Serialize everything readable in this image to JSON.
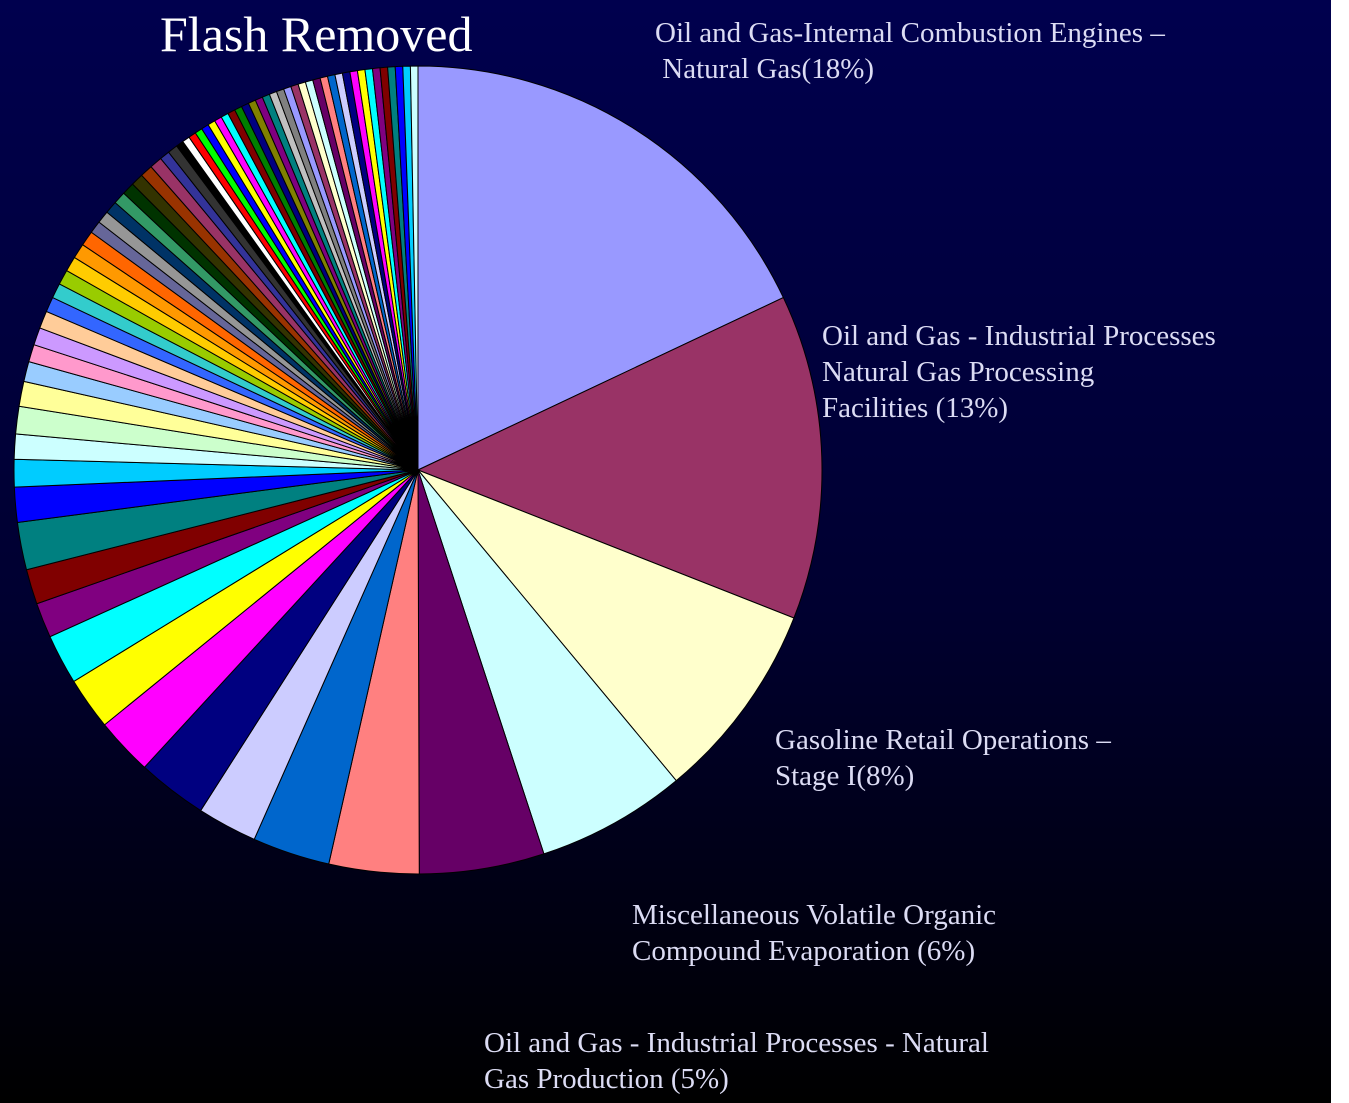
{
  "chart_data": {
    "type": "pie",
    "title": "Flash Removed",
    "categories": [
      "Oil and Gas-Internal Combustion Engines –\n Natural Gas(18%)",
      "Oil and Gas - Industrial Processes\nNatural Gas Processing\nFacilities (13%)",
      "Gasoline Retail Operations –\nStage I(8%)",
      "Miscellaneous Volatile Organic\nCompound Evaporation (6%)",
      "Oil and Gas - Industrial Processes - Natural\nGas Production (5%)",
      null,
      null,
      null,
      null,
      null,
      null,
      null,
      null,
      null,
      null,
      null,
      null,
      null,
      null,
      null,
      null,
      null,
      null,
      null,
      null,
      null,
      null,
      null,
      null,
      null,
      null,
      null,
      null,
      null,
      null,
      null,
      null,
      null,
      null,
      null,
      null,
      null,
      null,
      null,
      null,
      null,
      null,
      null,
      null,
      null,
      null,
      null,
      null,
      null,
      null,
      null,
      null,
      null,
      null,
      null,
      null,
      null,
      null,
      null,
      null,
      null,
      null,
      null,
      null,
      null,
      null,
      null,
      null,
      null
    ],
    "values": [
      18,
      13,
      8,
      6,
      5,
      3.6,
      3.1,
      2.4,
      2.8,
      2.3,
      2.1,
      2.0,
      1.4,
      1.4,
      1.9,
      1.4,
      1.1,
      1.0,
      1.1,
      1.0,
      0.8,
      0.7,
      0.7,
      0.7,
      0.6,
      0.6,
      0.6,
      0.6,
      0.6,
      0.6,
      0.5,
      0.5,
      0.5,
      0.5,
      0.5,
      0.5,
      0.5,
      0.5,
      0.4,
      0.4,
      0.3,
      0.3,
      0.3,
      0.3,
      0.3,
      0.3,
      0.3,
      0.3,
      0.3,
      0.3,
      0.3,
      0.3,
      0.3,
      0.3,
      0.3,
      0.3,
      0.3,
      0.3,
      0.3,
      0.3,
      0.3,
      0.3,
      0.3,
      0.3,
      0.3,
      0.3,
      0.3,
      0.3,
      0.3,
      0.3,
      0.3,
      0.3,
      0.3,
      0.3
    ],
    "colors": [
      "#9999FF",
      "#993366",
      "#FFFFCC",
      "#CCFFFF",
      "#660066",
      "#FF8080",
      "#0066CC",
      "#CCCCFF",
      "#000080",
      "#FF00FF",
      "#FFFF00",
      "#00FFFF",
      "#800080",
      "#800000",
      "#008080",
      "#0000FF",
      "#00CCFF",
      "#CCFFFF",
      "#CCFFCC",
      "#FFFF99",
      "#99CCFF",
      "#FF99CC",
      "#CC99FF",
      "#FFCC99",
      "#3366FF",
      "#33CCCC",
      "#99CC00",
      "#FFCC00",
      "#FF9900",
      "#FF6600",
      "#666699",
      "#969696",
      "#003366",
      "#339966",
      "#003300",
      "#333300",
      "#993300",
      "#993366",
      "#333399",
      "#333333",
      "#000000",
      "#FFFFFF",
      "#FF0000",
      "#00FF00",
      "#0000FF",
      "#FFFF00",
      "#FF00FF",
      "#00FFFF",
      "#800000",
      "#008000",
      "#000080",
      "#808000",
      "#800080",
      "#008080",
      "#C0C0C0",
      "#808080",
      "#9999FF",
      "#993366",
      "#FFFFCC",
      "#CCFFFF",
      "#660066",
      "#FF8080",
      "#0066CC",
      "#CCCCFF",
      "#000080",
      "#FF00FF",
      "#FFFF00",
      "#00FFFF",
      "#800080",
      "#800000",
      "#008080",
      "#0000FF",
      "#00CCFF",
      "#CCFFFF"
    ]
  }
}
